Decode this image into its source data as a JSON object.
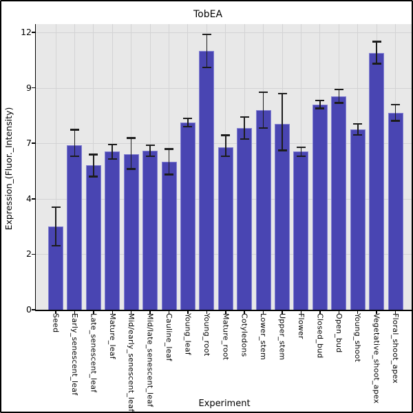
{
  "window": {
    "background": "#ffffff",
    "border_color": "#000000"
  },
  "chart_data": {
    "type": "bar",
    "title": "TobEA",
    "xlabel": "Experiment",
    "ylabel": "Expression_(Fluor._Intensity)",
    "categories": [
      "Seed",
      "Early_senescent_leaf",
      "Late_senescent_leaf",
      "Mature_leaf",
      "Mid/early_senescent_leaf",
      "Mid/late_senescent_leaf",
      "Cauline_leaf",
      "Young_leaf",
      "Young_root",
      "Mature_root",
      "Cotyledons",
      "Lower_stem",
      "Upper_stem",
      "Flower",
      "Closed_bud",
      "Open_bud",
      "Young_shoot",
      "Vegetative_shoot_apex",
      "Floral_shoot_apex"
    ],
    "values": [
      3.0,
      6.9,
      5.8,
      6.55,
      6.4,
      6.6,
      6.0,
      7.75,
      11.0,
      6.8,
      7.55,
      8.2,
      7.7,
      6.55,
      8.4,
      8.7,
      7.5,
      10.9,
      8.1
    ],
    "errors": [
      0.7,
      0.6,
      0.6,
      0.4,
      0.8,
      0.3,
      0.7,
      0.15,
      0.9,
      0.5,
      0.4,
      0.65,
      1.1,
      0.25,
      0.15,
      0.25,
      0.2,
      0.6,
      0.3
    ],
    "yticks": [
      0,
      2,
      4,
      7,
      9,
      12
    ],
    "ylim_top_label": 12,
    "grid": true,
    "legend": false,
    "plot_bg": "#e8e8e8",
    "grid_color": "#d3d3d4",
    "bar_color": "#4945b2",
    "bar_border_color": "#8280d2",
    "error_color": "#1c1c1c"
  }
}
